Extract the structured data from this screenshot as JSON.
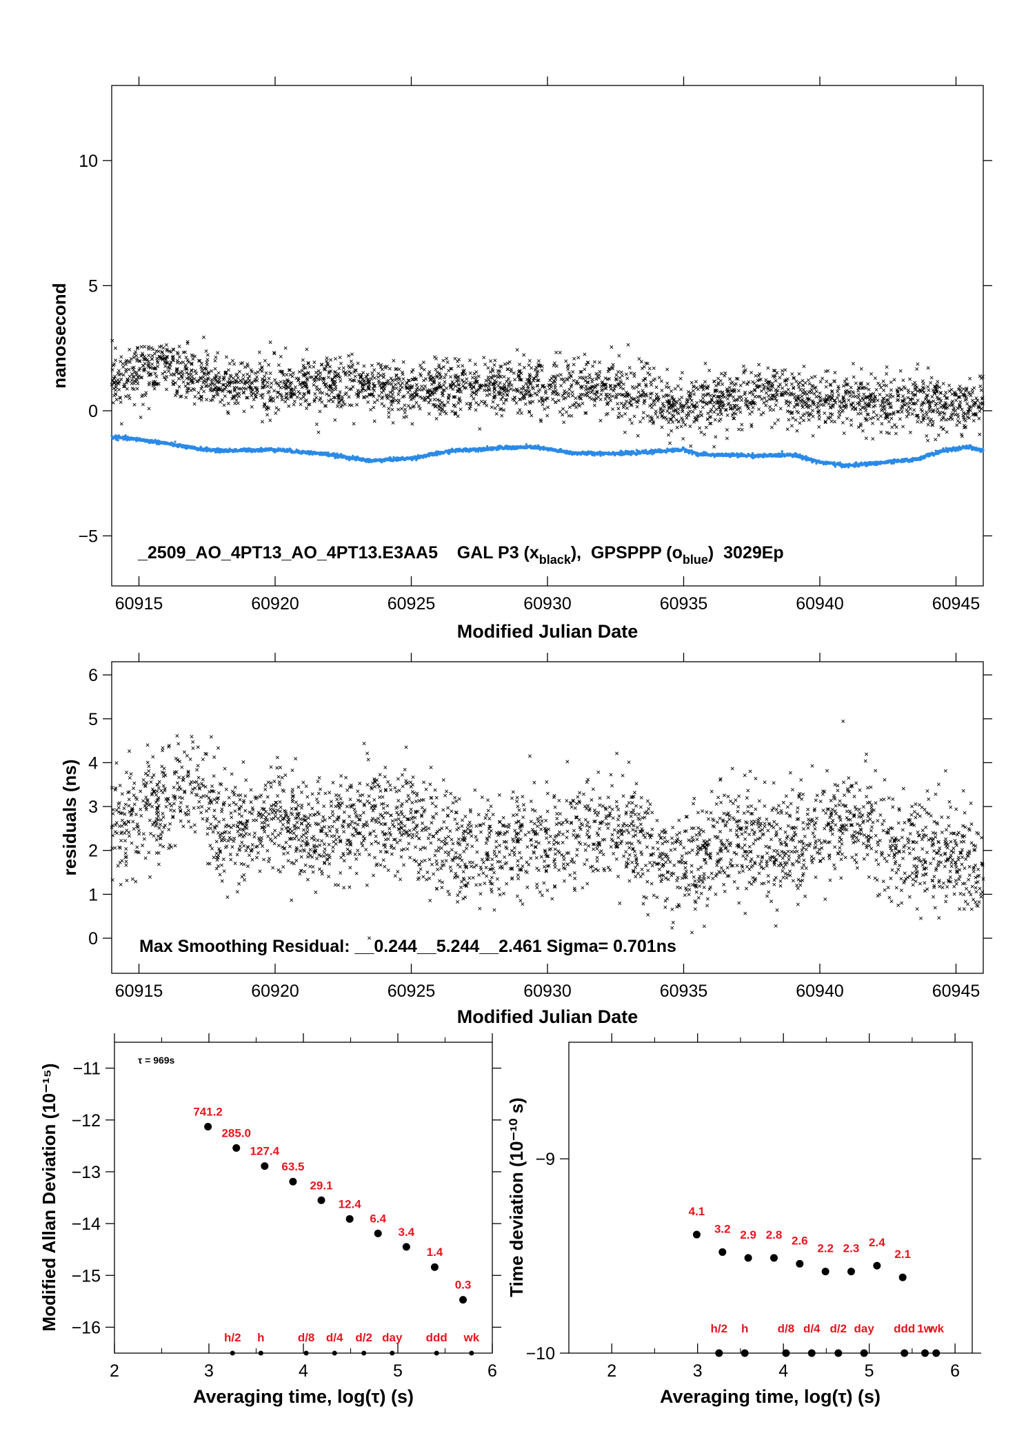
{
  "chart_data": [
    {
      "type": "scatter",
      "xlabel": "Modified Julian Date",
      "ylabel": "nanosecond",
      "xlim": [
        60914,
        60946
      ],
      "ylim": [
        -7,
        13
      ],
      "x_ticks": [
        60915,
        60920,
        60925,
        60930,
        60935,
        60940,
        60945
      ],
      "y_ticks": [
        -5,
        0,
        5,
        10
      ],
      "y_tick_labels": [
        "−5",
        "0",
        "5",
        "10"
      ],
      "annotation_parts": [
        "_2509_AO_4PT13_AO_4PT13.E3AA5    GAL P3 (x",
        "black",
        "),  GPSPPP (o",
        "blue",
        ")  3029Ep"
      ],
      "series": [
        {
          "marker": "x",
          "color": "#000000",
          "x_start": 60914,
          "x_end": 60946,
          "count": 2900,
          "trend": [
            [
              60914,
              1.3
            ],
            [
              60916,
              1.8
            ],
            [
              60918,
              1.0
            ],
            [
              60922,
              1.0
            ],
            [
              60925,
              0.8
            ],
            [
              60929,
              1.0
            ],
            [
              60932,
              0.9
            ],
            [
              60935,
              0.2
            ],
            [
              60938,
              0.7
            ],
            [
              60940,
              0.4
            ],
            [
              60946,
              0.2
            ]
          ]
        },
        {
          "marker": "o",
          "color": "#2b8ae6",
          "x_start": 60914,
          "x_end": 60946,
          "count": 2900,
          "trend": [
            [
              60914,
              -1.05
            ],
            [
              60915,
              -1.15
            ],
            [
              60916,
              -1.3
            ],
            [
              60917,
              -1.5
            ],
            [
              60918,
              -1.6
            ],
            [
              60920,
              -1.55
            ],
            [
              60922,
              -1.75
            ],
            [
              60923.5,
              -2.0
            ],
            [
              60925,
              -1.9
            ],
            [
              60926.5,
              -1.6
            ],
            [
              60928,
              -1.5
            ],
            [
              60929.5,
              -1.45
            ],
            [
              60931,
              -1.7
            ],
            [
              60933,
              -1.7
            ],
            [
              60935,
              -1.55
            ],
            [
              60935.6,
              -1.75
            ],
            [
              60938,
              -1.8
            ],
            [
              60939,
              -1.75
            ],
            [
              60940,
              -2.05
            ],
            [
              60941,
              -2.2
            ],
            [
              60942.5,
              -2.05
            ],
            [
              60943.5,
              -1.95
            ],
            [
              60944.5,
              -1.6
            ],
            [
              60945.5,
              -1.45
            ],
            [
              60946,
              -1.6
            ]
          ]
        }
      ]
    },
    {
      "type": "scatter",
      "xlabel": "Modified Julian Date",
      "ylabel": "residuals (ns)",
      "xlim": [
        60914,
        60946
      ],
      "ylim": [
        -0.8,
        6.3
      ],
      "x_ticks": [
        60915,
        60920,
        60925,
        60930,
        60935,
        60940,
        60945
      ],
      "y_ticks": [
        0,
        1,
        2,
        3,
        4,
        5,
        6
      ],
      "annotation": "Max Smoothing Residual: __0.244__5.244__2.461  Sigma= 0.701ns",
      "series": [
        {
          "marker": "x",
          "color": "#000000",
          "x_start": 60914,
          "x_end": 60946,
          "count": 2900,
          "trend": [
            [
              60914,
              2.5
            ],
            [
              60915,
              2.7
            ],
            [
              60916,
              3.3
            ],
            [
              60917,
              3.5
            ],
            [
              60918,
              2.5
            ],
            [
              60920,
              2.7
            ],
            [
              60922,
              2.3
            ],
            [
              60923.5,
              2.9
            ],
            [
              60925,
              2.6
            ],
            [
              60927,
              2.0
            ],
            [
              60929,
              2.2
            ],
            [
              60931,
              2.4
            ],
            [
              60933,
              2.4
            ],
            [
              60935,
              1.6
            ],
            [
              60937,
              2.4
            ],
            [
              60939,
              2.0
            ],
            [
              60941,
              2.7
            ],
            [
              60943,
              2.1
            ],
            [
              60946,
              1.6
            ]
          ]
        }
      ]
    },
    {
      "type": "scatter",
      "xlabel": "Averaging time, log(τ) (s)",
      "ylabel": "Modified Allan Deviation (10⁻¹⁵)",
      "xlim": [
        2,
        6
      ],
      "ylim": [
        -16.5,
        -10.5
      ],
      "x_ticks": [
        2,
        3,
        4,
        5,
        6
      ],
      "y_ticks": [
        -16,
        -15,
        -14,
        -13,
        -12,
        -11
      ],
      "y_tick_labels": [
        "−16",
        "−15",
        "−14",
        "−13",
        "−12",
        "−11"
      ],
      "tau_note": "τ = 969s",
      "x": [
        2.99,
        3.29,
        3.59,
        3.89,
        4.19,
        4.49,
        4.79,
        5.09,
        5.39,
        5.69
      ],
      "y": [
        -12.13,
        -12.54,
        -12.89,
        -13.19,
        -13.55,
        -13.91,
        -14.19,
        -14.45,
        -14.84,
        -15.47
      ],
      "point_labels": [
        "741.2",
        "285.0",
        "127.4",
        "63.5",
        "29.1",
        "12.4",
        "6.4",
        "3.4",
        "1.4",
        "0.3"
      ],
      "marker_x": [
        3.25,
        3.55,
        4.03,
        4.33,
        4.64,
        4.94,
        5.41,
        5.78
      ],
      "marker_labels": [
        "h/2",
        "h",
        "d/8",
        "d/4",
        "d/2",
        "day",
        "ddd",
        "wk"
      ]
    },
    {
      "type": "scatter",
      "xlabel": "Averaging time, log(τ) (s)",
      "ylabel": "Time deviation (10⁻¹⁰ s)",
      "xlim": [
        1.5,
        6.2
      ],
      "ylim": [
        -10,
        -8.4
      ],
      "x_ticks": [
        2,
        3,
        4,
        5,
        6
      ],
      "y_ticks": [
        -10,
        -9
      ],
      "y_tick_labels": [
        "−10",
        "−9"
      ],
      "x": [
        2.99,
        3.29,
        3.59,
        3.89,
        4.19,
        4.49,
        4.79,
        5.09,
        5.39
      ],
      "y": [
        -9.39,
        -9.48,
        -9.51,
        -9.51,
        -9.54,
        -9.58,
        -9.58,
        -9.55,
        -9.61
      ],
      "point_labels": [
        "4.1",
        "3.2",
        "2.9",
        "2.8",
        "2.6",
        "2.2",
        "2.3",
        "2.4",
        "2.1"
      ],
      "marker_x": [
        3.25,
        3.55,
        4.03,
        4.33,
        4.64,
        4.94,
        5.41,
        5.65,
        5.78
      ],
      "marker_labels": [
        "h/2",
        "h",
        "d/8",
        "d/4",
        "d/2",
        "day",
        "ddd",
        "1w",
        "wk"
      ]
    }
  ]
}
